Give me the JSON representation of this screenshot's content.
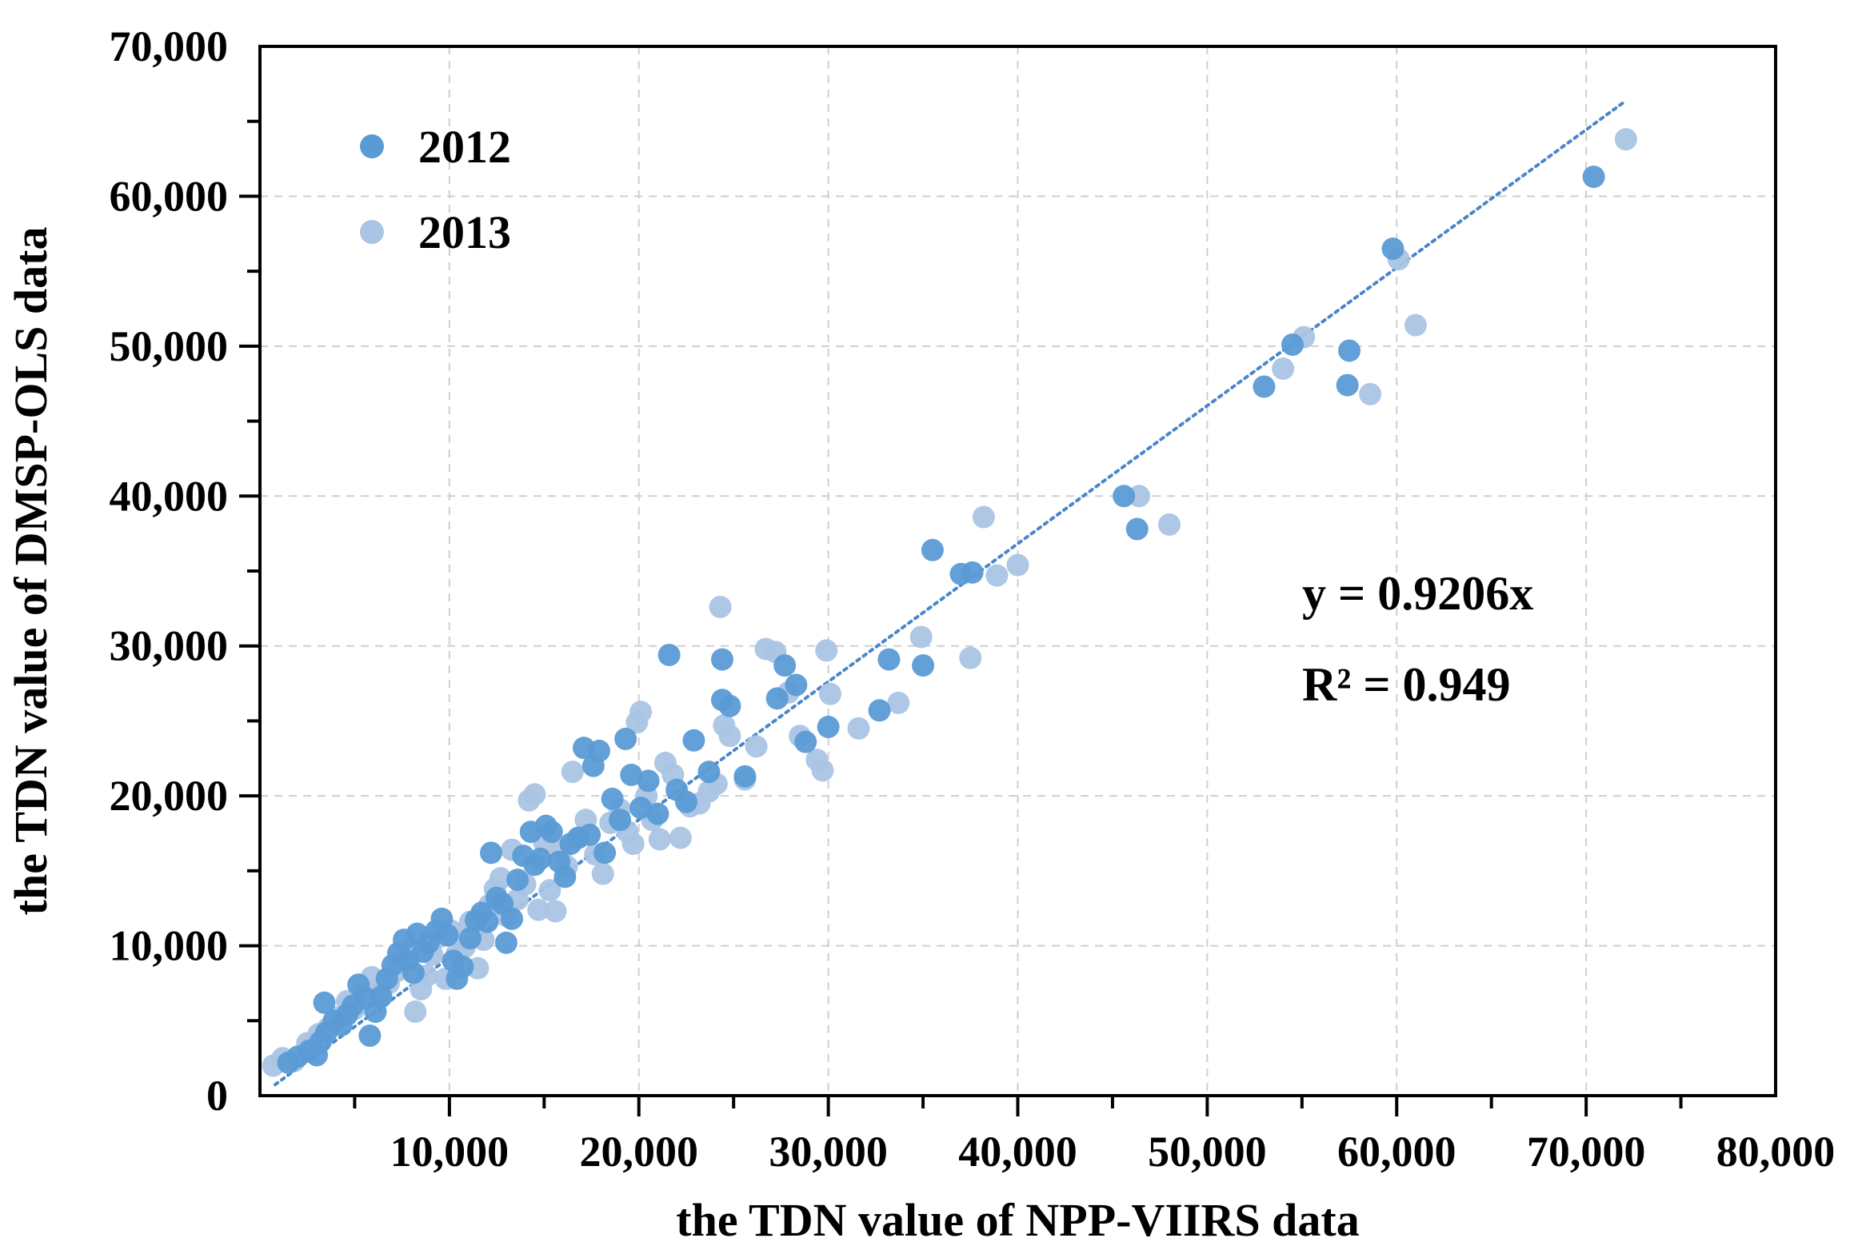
{
  "chart_data": {
    "type": "scatter",
    "title": "",
    "xlabel": "the TDN value of NPP-VIIRS data",
    "ylabel": "the TDN value of DMSP-OLS data",
    "xlim": [
      0,
      80000
    ],
    "ylim": [
      0,
      70000
    ],
    "x_ticks": [
      10000,
      20000,
      30000,
      40000,
      50000,
      60000,
      70000,
      80000
    ],
    "x_tick_labels": [
      "10,000",
      "20,000",
      "30,000",
      "40,000",
      "50,000",
      "60,000",
      "70,000",
      "80,000"
    ],
    "y_ticks": [
      0,
      10000,
      20000,
      30000,
      40000,
      50000,
      60000,
      70000
    ],
    "y_tick_labels": [
      "0",
      "10,000",
      "20,000",
      "30,000",
      "40,000",
      "50,000",
      "60,000",
      "70,000"
    ],
    "grid": true,
    "legend_position": "top-left",
    "series": [
      {
        "name": "2012",
        "color": "#5b9bd5",
        "points": [
          [
            1500,
            2200
          ],
          [
            2000,
            2600
          ],
          [
            2600,
            3000
          ],
          [
            3000,
            2700
          ],
          [
            3200,
            3600
          ],
          [
            3500,
            4200
          ],
          [
            3400,
            6200
          ],
          [
            3900,
            5000
          ],
          [
            4300,
            4700
          ],
          [
            4600,
            5400
          ],
          [
            4900,
            6000
          ],
          [
            5200,
            7400
          ],
          [
            5600,
            6500
          ],
          [
            5800,
            4000
          ],
          [
            6100,
            5600
          ],
          [
            6400,
            6600
          ],
          [
            6700,
            7800
          ],
          [
            7000,
            8700
          ],
          [
            7300,
            9500
          ],
          [
            7600,
            10400
          ],
          [
            7800,
            9000
          ],
          [
            8100,
            8200
          ],
          [
            8300,
            10800
          ],
          [
            8600,
            9600
          ],
          [
            8900,
            10200
          ],
          [
            9300,
            11000
          ],
          [
            9600,
            11800
          ],
          [
            9900,
            10700
          ],
          [
            10200,
            9000
          ],
          [
            10400,
            7800
          ],
          [
            10700,
            8600
          ],
          [
            11100,
            10500
          ],
          [
            11400,
            11700
          ],
          [
            11700,
            12200
          ],
          [
            12000,
            11600
          ],
          [
            12200,
            16200
          ],
          [
            12500,
            13200
          ],
          [
            12800,
            12800
          ],
          [
            13000,
            10200
          ],
          [
            13300,
            11800
          ],
          [
            13600,
            14400
          ],
          [
            13900,
            16000
          ],
          [
            14300,
            17600
          ],
          [
            14500,
            15400
          ],
          [
            14800,
            15800
          ],
          [
            15100,
            18000
          ],
          [
            15400,
            17600
          ],
          [
            15800,
            15600
          ],
          [
            16100,
            14600
          ],
          [
            16400,
            16800
          ],
          [
            16800,
            17200
          ],
          [
            17100,
            23200
          ],
          [
            17400,
            17400
          ],
          [
            17600,
            22000
          ],
          [
            17900,
            23000
          ],
          [
            18200,
            16200
          ],
          [
            18600,
            19800
          ],
          [
            19000,
            18400
          ],
          [
            19300,
            23800
          ],
          [
            19600,
            21400
          ],
          [
            20100,
            19200
          ],
          [
            20500,
            21000
          ],
          [
            21000,
            18800
          ],
          [
            21600,
            29400
          ],
          [
            22000,
            20400
          ],
          [
            22500,
            19600
          ],
          [
            22900,
            23700
          ],
          [
            23700,
            21600
          ],
          [
            24400,
            29100
          ],
          [
            24400,
            26400
          ],
          [
            24800,
            26000
          ],
          [
            25600,
            21300
          ],
          [
            27300,
            26500
          ],
          [
            27700,
            28700
          ],
          [
            28300,
            27400
          ],
          [
            28800,
            23600
          ],
          [
            30000,
            24600
          ],
          [
            32700,
            25700
          ],
          [
            33200,
            29100
          ],
          [
            35000,
            28700
          ],
          [
            35500,
            36400
          ],
          [
            37000,
            34800
          ],
          [
            37600,
            34900
          ],
          [
            45600,
            40000
          ],
          [
            46300,
            37800
          ],
          [
            53000,
            47300
          ],
          [
            54500,
            50100
          ],
          [
            57400,
            47400
          ],
          [
            57500,
            49700
          ],
          [
            59800,
            56500
          ],
          [
            70400,
            61300
          ]
        ]
      },
      {
        "name": "2013",
        "color": "#a9c4e4",
        "points": [
          [
            700,
            2000
          ],
          [
            1200,
            2500
          ],
          [
            1800,
            2300
          ],
          [
            2500,
            3500
          ],
          [
            3100,
            4100
          ],
          [
            3600,
            4500
          ],
          [
            4100,
            5200
          ],
          [
            4600,
            6300
          ],
          [
            5000,
            5800
          ],
          [
            5500,
            7000
          ],
          [
            5900,
            7900
          ],
          [
            6300,
            6900
          ],
          [
            6800,
            7500
          ],
          [
            7200,
            8300
          ],
          [
            7600,
            9200
          ],
          [
            8000,
            9800
          ],
          [
            8200,
            5600
          ],
          [
            8500,
            7100
          ],
          [
            8800,
            8000
          ],
          [
            9100,
            9400
          ],
          [
            9500,
            10600
          ],
          [
            9800,
            7800
          ],
          [
            10100,
            11000
          ],
          [
            10400,
            9500
          ],
          [
            10800,
            9900
          ],
          [
            11100,
            11600
          ],
          [
            11500,
            8500
          ],
          [
            11800,
            10400
          ],
          [
            12100,
            12700
          ],
          [
            12400,
            13800
          ],
          [
            12700,
            14500
          ],
          [
            13000,
            12000
          ],
          [
            13300,
            16400
          ],
          [
            13600,
            13100
          ],
          [
            14000,
            14100
          ],
          [
            14200,
            19700
          ],
          [
            14500,
            20100
          ],
          [
            14700,
            12400
          ],
          [
            15000,
            16900
          ],
          [
            15300,
            13700
          ],
          [
            15600,
            12300
          ],
          [
            15900,
            16300
          ],
          [
            16200,
            15300
          ],
          [
            16500,
            21600
          ],
          [
            16800,
            17200
          ],
          [
            17200,
            18400
          ],
          [
            17700,
            16100
          ],
          [
            18100,
            14800
          ],
          [
            18500,
            18200
          ],
          [
            19000,
            19100
          ],
          [
            19400,
            17600
          ],
          [
            19700,
            16800
          ],
          [
            19900,
            24900
          ],
          [
            20100,
            25600
          ],
          [
            20400,
            20000
          ],
          [
            20700,
            18400
          ],
          [
            21100,
            17100
          ],
          [
            21400,
            22200
          ],
          [
            21800,
            21400
          ],
          [
            22200,
            17200
          ],
          [
            22700,
            19300
          ],
          [
            23200,
            19500
          ],
          [
            23700,
            20300
          ],
          [
            24100,
            20800
          ],
          [
            24300,
            32600
          ],
          [
            24500,
            24700
          ],
          [
            24800,
            24000
          ],
          [
            25600,
            21100
          ],
          [
            26200,
            23300
          ],
          [
            26700,
            29800
          ],
          [
            27200,
            29600
          ],
          [
            27900,
            26900
          ],
          [
            28500,
            24000
          ],
          [
            29400,
            22400
          ],
          [
            29700,
            21700
          ],
          [
            29900,
            29700
          ],
          [
            30100,
            26800
          ],
          [
            31600,
            24500
          ],
          [
            33700,
            26200
          ],
          [
            34900,
            30600
          ],
          [
            37500,
            29200
          ],
          [
            38200,
            38600
          ],
          [
            38900,
            34700
          ],
          [
            40000,
            35400
          ],
          [
            46400,
            40000
          ],
          [
            48000,
            38100
          ],
          [
            54000,
            48500
          ],
          [
            55100,
            50600
          ],
          [
            58600,
            46800
          ],
          [
            60100,
            55800
          ],
          [
            61000,
            51400
          ],
          [
            72100,
            63800
          ]
        ]
      }
    ],
    "trendline": {
      "style": "dotted",
      "color": "#4a86c8",
      "slope": 0.9206,
      "x_range": [
        800,
        72000
      ]
    },
    "annotations": [
      "y = 0.9206x",
      "R² = 0.949"
    ]
  }
}
